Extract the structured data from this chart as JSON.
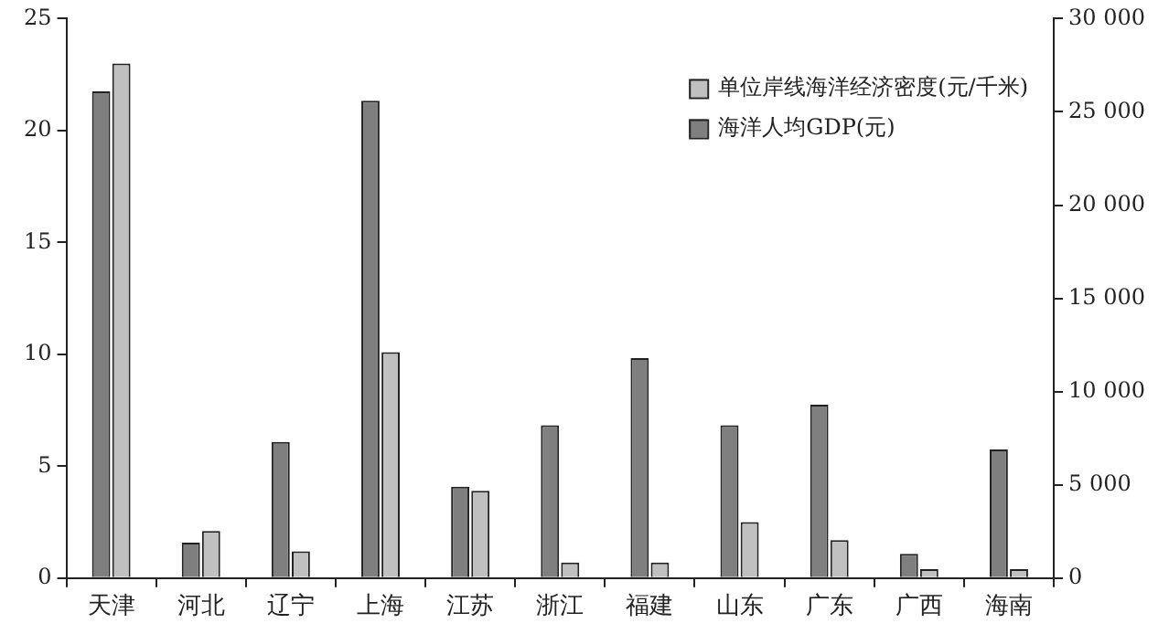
{
  "chart_data": {
    "type": "bar",
    "categories": [
      "天津",
      "河北",
      "辽宁",
      "上海",
      "江苏",
      "浙江",
      "福建",
      "山东",
      "广东",
      "广西",
      "海南"
    ],
    "series": [
      {
        "name": "海洋人均GDP(元)",
        "color": "#7f7f7f",
        "axis": "y2",
        "values": [
          26100,
          1900,
          7300,
          25600,
          4900,
          8200,
          11800,
          8200,
          9300,
          1300,
          6900
        ]
      },
      {
        "name": "单位岸线海洋经济密度(元/千米)",
        "color": "#c0c0c0",
        "values": [
          23.0,
          2.1,
          1.2,
          10.1,
          3.9,
          0.7,
          0.7,
          2.5,
          1.7,
          0.4,
          0.4
        ]
      }
    ],
    "ylim": [
      0,
      25
    ],
    "yticks": [
      0,
      5,
      10,
      15,
      20,
      25
    ],
    "y2lim": [
      0,
      30000
    ],
    "y2ticks": [
      {
        "value": 0,
        "label": "0"
      },
      {
        "value": 5000,
        "label": "5 000"
      },
      {
        "value": 10000,
        "label": "10 000"
      },
      {
        "value": 15000,
        "label": "15 000"
      },
      {
        "value": 20000,
        "label": "20 000"
      },
      {
        "value": 25000,
        "label": "25 000"
      },
      {
        "value": 30000,
        "label": "30 000"
      }
    ],
    "grid": false,
    "legend": "top right"
  }
}
